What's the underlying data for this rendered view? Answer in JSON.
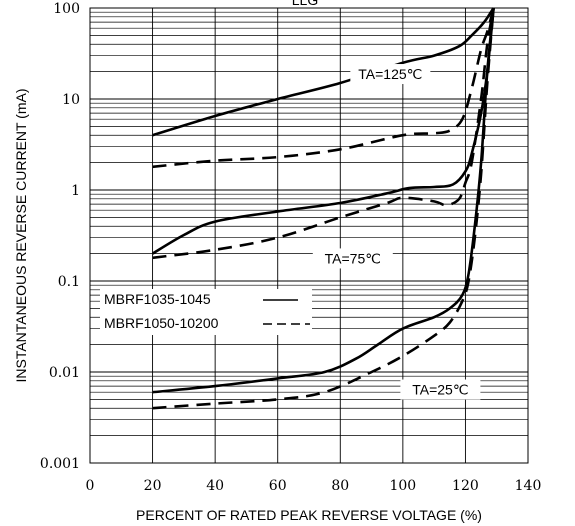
{
  "chart_data": {
    "type": "line",
    "title": "LLG",
    "xlabel": "PERCENT OF RATED PEAK REVERSE VOLTAGE (%)",
    "ylabel": "INSTANTANEOUS REVERSE CURRENT (mA)",
    "xlim": [
      0,
      140
    ],
    "ylim": [
      0.001,
      100
    ],
    "yscale": "log",
    "grid": true,
    "x_ticks": [
      0,
      20,
      40,
      60,
      80,
      100,
      120,
      140
    ],
    "y_ticks": [
      0.001,
      0.01,
      0.1,
      1,
      10,
      100
    ],
    "x_tick_labels": [
      "0",
      "20",
      "40",
      "60",
      "80",
      "100",
      "120",
      "140"
    ],
    "y_tick_labels": [
      "0.001",
      "0.01",
      "0.1",
      "1",
      "10",
      "100"
    ],
    "legend": {
      "placement": "left-middle",
      "entries": [
        {
          "label": "MBRF1035-1045",
          "style": "solid"
        },
        {
          "label": "MBRF1050-10200",
          "style": "dashed"
        }
      ]
    },
    "annotations": [
      {
        "text": "TA=125℃",
        "x": 96,
        "y": 17
      },
      {
        "text": "TA=75℃",
        "x": 84,
        "y": 0.16
      },
      {
        "text": "TA=25℃",
        "x": 112,
        "y": 0.0058
      }
    ],
    "series": [
      {
        "id": "s125_solid",
        "style": "solid",
        "points": [
          [
            20,
            4
          ],
          [
            40,
            6.5
          ],
          [
            60,
            10
          ],
          [
            80,
            15
          ],
          [
            100,
            25
          ],
          [
            110,
            30
          ],
          [
            118,
            38
          ],
          [
            122,
            50
          ],
          [
            126,
            70
          ],
          [
            129,
            100
          ]
        ]
      },
      {
        "id": "s125_dash",
        "style": "dashed",
        "points": [
          [
            20,
            1.8
          ],
          [
            40,
            2.1
          ],
          [
            60,
            2.3
          ],
          [
            80,
            2.8
          ],
          [
            100,
            4
          ],
          [
            110,
            4.2
          ],
          [
            115,
            4.5
          ],
          [
            119,
            6
          ],
          [
            122,
            13
          ],
          [
            125,
            35
          ],
          [
            127,
            55
          ],
          [
            129,
            100
          ]
        ]
      },
      {
        "id": "s75_solid",
        "style": "solid",
        "points": [
          [
            20,
            0.2
          ],
          [
            30,
            0.32
          ],
          [
            40,
            0.45
          ],
          [
            60,
            0.58
          ],
          [
            80,
            0.72
          ],
          [
            95,
            0.92
          ],
          [
            102,
            1.05
          ],
          [
            110,
            1.08
          ],
          [
            116,
            1.15
          ],
          [
            120,
            1.6
          ],
          [
            122,
            2.5
          ],
          [
            125,
            7
          ],
          [
            127,
            20
          ],
          [
            129,
            100
          ]
        ]
      },
      {
        "id": "s75_dash",
        "style": "dashed",
        "points": [
          [
            20,
            0.18
          ],
          [
            40,
            0.22
          ],
          [
            60,
            0.3
          ],
          [
            80,
            0.5
          ],
          [
            95,
            0.72
          ],
          [
            100,
            0.82
          ],
          [
            110,
            0.75
          ],
          [
            114,
            0.68
          ],
          [
            118,
            0.8
          ],
          [
            120,
            1.2
          ],
          [
            122,
            2
          ],
          [
            125,
            10
          ],
          [
            127,
            40
          ],
          [
            129,
            100
          ]
        ]
      },
      {
        "id": "s25_solid",
        "style": "solid",
        "points": [
          [
            20,
            0.006
          ],
          [
            40,
            0.007
          ],
          [
            60,
            0.0085
          ],
          [
            75,
            0.01
          ],
          [
            85,
            0.014
          ],
          [
            92,
            0.02
          ],
          [
            100,
            0.03
          ],
          [
            110,
            0.04
          ],
          [
            115,
            0.05
          ],
          [
            119,
            0.07
          ],
          [
            121,
            0.12
          ],
          [
            123,
            0.4
          ],
          [
            125,
            2
          ],
          [
            127,
            20
          ],
          [
            129,
            100
          ]
        ]
      },
      {
        "id": "s25_dash",
        "style": "dashed",
        "points": [
          [
            20,
            0.004
          ],
          [
            40,
            0.0045
          ],
          [
            60,
            0.005
          ],
          [
            75,
            0.006
          ],
          [
            90,
            0.01
          ],
          [
            100,
            0.015
          ],
          [
            110,
            0.025
          ],
          [
            115,
            0.035
          ],
          [
            119,
            0.06
          ],
          [
            121,
            0.1
          ],
          [
            123,
            0.3
          ],
          [
            125,
            1.5
          ],
          [
            127,
            15
          ],
          [
            129,
            100
          ]
        ]
      }
    ]
  }
}
